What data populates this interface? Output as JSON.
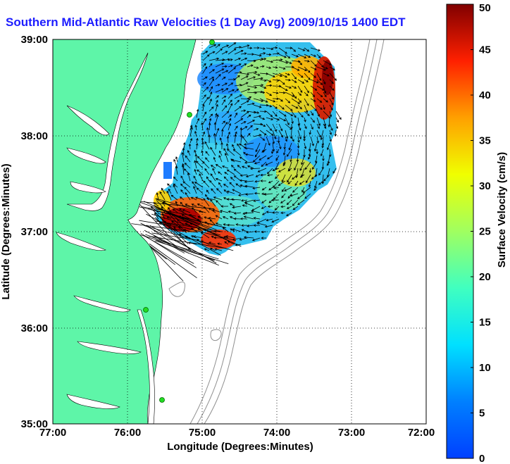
{
  "title": "Southern Mid-Atlantic Raw Velocities (1 Day Avg) 2009/10/15 1400 EDT",
  "x_axis": {
    "label": "Longitude (Degrees:Minutes)",
    "ticks": [
      "77:00",
      "76:00",
      "75:00",
      "74:00",
      "73:00",
      "72:00"
    ]
  },
  "y_axis": {
    "label": "Latitude (Degrees:Minutes)",
    "ticks": [
      "35:00",
      "36:00",
      "37:00",
      "38:00",
      "39:00"
    ]
  },
  "colorbar": {
    "label": "Surface Velocity (cm/s)",
    "ticks": [
      "0",
      "5",
      "10",
      "15",
      "20",
      "25",
      "30",
      "35",
      "40",
      "45",
      "50"
    ],
    "min": 0,
    "max": 50,
    "colormap": "jet"
  },
  "map": {
    "land_color": "#5ef5a8",
    "water_color": "#ffffff",
    "bathymetry_color": "#909090",
    "station_color": "#22dd22",
    "vector_color": "#000000",
    "grid": "dotted"
  }
}
